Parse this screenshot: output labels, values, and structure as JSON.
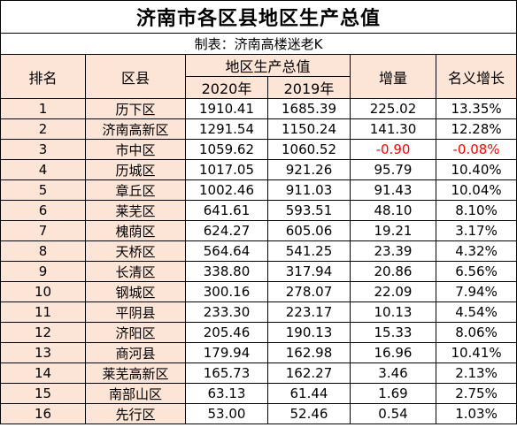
{
  "title": "济南市各区县地区生产总值",
  "maker": "制表：济南高楼迷老K",
  "headers": {
    "rank": "排名",
    "county": "区县",
    "gdp": "地区生产总值",
    "year2020": "2020年",
    "year2019": "2019年",
    "increase": "增量",
    "growth": "名义增长"
  },
  "rows": [
    {
      "rank": "1",
      "county": "历下区",
      "gdp2020": "1910.41",
      "gdp2019": "1685.39",
      "increase": "225.02",
      "growth": "13.35%"
    },
    {
      "rank": "2",
      "county": "济南高新区",
      "gdp2020": "1291.54",
      "gdp2019": "1150.24",
      "increase": "141.30",
      "growth": "12.28%"
    },
    {
      "rank": "3",
      "county": "市中区",
      "gdp2020": "1059.62",
      "gdp2019": "1060.52",
      "increase": "-0.90",
      "growth": "-0.08%"
    },
    {
      "rank": "4",
      "county": "历城区",
      "gdp2020": "1017.05",
      "gdp2019": "921.26",
      "increase": "95.79",
      "growth": "10.40%"
    },
    {
      "rank": "5",
      "county": "章丘区",
      "gdp2020": "1002.46",
      "gdp2019": "911.03",
      "increase": "91.43",
      "growth": "10.04%"
    },
    {
      "rank": "6",
      "county": "莱芜区",
      "gdp2020": "641.61",
      "gdp2019": "593.51",
      "increase": "48.10",
      "growth": "8.10%"
    },
    {
      "rank": "7",
      "county": "槐荫区",
      "gdp2020": "624.27",
      "gdp2019": "605.06",
      "increase": "19.21",
      "growth": "3.17%"
    },
    {
      "rank": "8",
      "county": "天桥区",
      "gdp2020": "564.64",
      "gdp2019": "541.25",
      "increase": "23.39",
      "growth": "4.32%"
    },
    {
      "rank": "9",
      "county": "长清区",
      "gdp2020": "338.80",
      "gdp2019": "317.94",
      "increase": "20.86",
      "growth": "6.56%"
    },
    {
      "rank": "10",
      "county": "钢城区",
      "gdp2020": "300.16",
      "gdp2019": "278.07",
      "increase": "22.09",
      "growth": "7.94%"
    },
    {
      "rank": "11",
      "county": "平阴县",
      "gdp2020": "233.30",
      "gdp2019": "223.17",
      "increase": "10.13",
      "growth": "4.54%"
    },
    {
      "rank": "12",
      "county": "济阳区",
      "gdp2020": "205.46",
      "gdp2019": "190.13",
      "increase": "15.33",
      "growth": "8.06%"
    },
    {
      "rank": "13",
      "county": "商河县",
      "gdp2020": "179.94",
      "gdp2019": "162.98",
      "increase": "16.96",
      "growth": "10.41%"
    },
    {
      "rank": "14",
      "county": "莱芜高新区",
      "gdp2020": "165.73",
      "gdp2019": "162.27",
      "increase": "3.46",
      "growth": "2.13%"
    },
    {
      "rank": "15",
      "county": "南部山区",
      "gdp2020": "63.13",
      "gdp2019": "61.44",
      "increase": "1.69",
      "growth": "2.75%"
    },
    {
      "rank": "16",
      "county": "先行区",
      "gdp2020": "53.00",
      "gdp2019": "52.46",
      "increase": "0.54",
      "growth": "1.03%"
    }
  ],
  "colors": {
    "header_fill": "#fce4d6",
    "negative_text": "#ff0000",
    "border": "#000000"
  }
}
